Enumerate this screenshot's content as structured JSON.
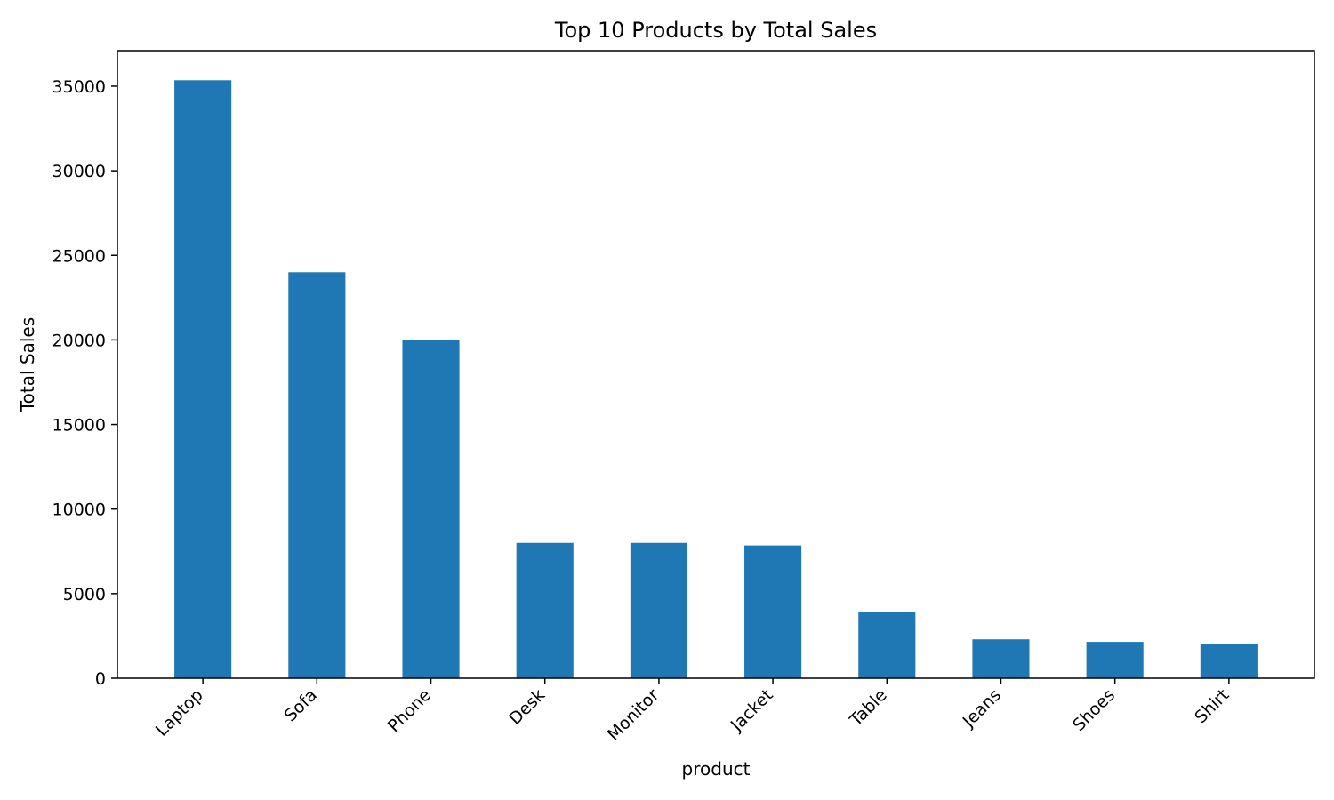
{
  "chart_data": {
    "type": "bar",
    "title": "Top 10 Products by Total Sales",
    "xlabel": "product",
    "ylabel": "Total Sales",
    "categories": [
      "Laptop",
      "Sofa",
      "Phone",
      "Desk",
      "Monitor",
      "Jacket",
      "Table",
      "Jeans",
      "Shoes",
      "Shirt"
    ],
    "values": [
      35350,
      24000,
      20000,
      8000,
      8000,
      7850,
      3900,
      2300,
      2150,
      2050
    ],
    "ylim": [
      0,
      37100
    ],
    "yticks": [
      0,
      5000,
      10000,
      15000,
      20000,
      25000,
      30000,
      35000
    ],
    "bar_color": "#1f77b4",
    "grid": false,
    "legend": "none"
  }
}
